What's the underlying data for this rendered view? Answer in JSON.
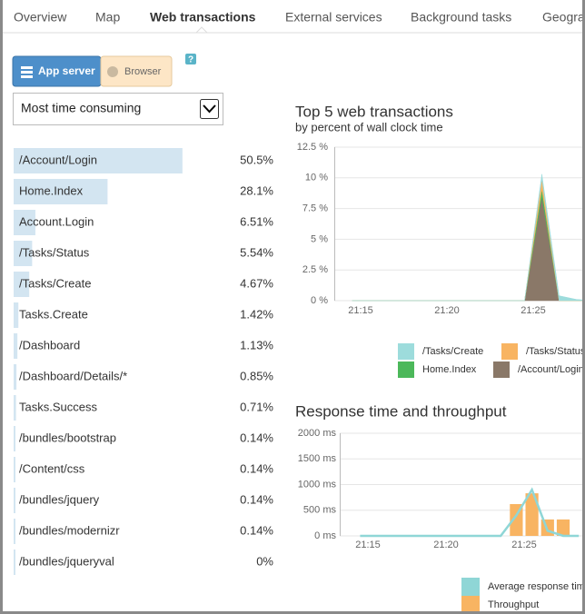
{
  "tabs": [
    "Overview",
    "Map",
    "Web transactions",
    "External services",
    "Background tasks",
    "Geogra"
  ],
  "toggle": {
    "app_server": "App server",
    "browser": "Browser",
    "help": "?"
  },
  "dropdown": "Most time consuming",
  "transactions": {
    "names": [
      "/Account/Login",
      "Home.Index",
      "Account.Login",
      "/Tasks/Status",
      "/Tasks/Create",
      "Tasks.Create",
      "/Dashboard",
      "/Dashboard/Details/*",
      "Tasks.Success",
      "/bundles/bootstrap",
      "/Content/css",
      "/bundles/jquery",
      "/bundles/modernizr",
      "/bundles/jqueryval"
    ],
    "values": [
      50.5,
      28.1,
      6.51,
      5.54,
      4.67,
      1.42,
      1.13,
      0.85,
      0.71,
      0.14,
      0.14,
      0.14,
      0.14,
      0
    ],
    "value_labels": [
      "50.5%",
      "28.1%",
      "6.51%",
      "5.54%",
      "4.67%",
      "1.42%",
      "1.13%",
      "0.85%",
      "0.71%",
      "0.14%",
      "0.14%",
      "0.14%",
      "0.14%",
      "0%"
    ]
  },
  "chart_data": [
    {
      "type": "area",
      "title": "Top 5 web transactions",
      "subtitle": "by percent of wall clock time",
      "categories": [
        null,
        "21:15",
        null,
        null,
        null,
        null,
        "21:20",
        null,
        null,
        null,
        null,
        "21:25",
        null,
        null,
        null
      ],
      "ylim": [
        0,
        12.5
      ],
      "yticks": [
        {
          "value": 0,
          "label": "0 %"
        },
        {
          "value": 2.5,
          "label": "2.5 %"
        },
        {
          "value": 5,
          "label": "5 %"
        },
        {
          "value": 7.5,
          "label": "7.5 %"
        },
        {
          "value": 10,
          "label": "10 %"
        },
        {
          "value": 12.5,
          "label": "12.5 %"
        }
      ],
      "grid": true,
      "stacked": true,
      "series": [
        {
          "name": "/Tasks/Create",
          "color": "#9ddcdc",
          "values": [
            0,
            0,
            0,
            0,
            0,
            0,
            0,
            0,
            0,
            0,
            0,
            0.4,
            0.4,
            0.1,
            0
          ]
        },
        {
          "name": "/Tasks/Status",
          "color": "#f8b462",
          "values": [
            0,
            0,
            0,
            0,
            0,
            0,
            0,
            0,
            0,
            0,
            0,
            0.8,
            0,
            0,
            0
          ]
        },
        {
          "name": "Home.Index",
          "color": "#4cb85a",
          "values": [
            0,
            0,
            0,
            0,
            0,
            0,
            0,
            0,
            0,
            0,
            0,
            0.6,
            0,
            0,
            0
          ]
        },
        {
          "name": "/Account/Login",
          "color": "#8a7868",
          "values": [
            0,
            0,
            0,
            0,
            0,
            0,
            0,
            0,
            0,
            0,
            0,
            8.5,
            0,
            0,
            0
          ]
        }
      ]
    },
    {
      "type": "combo",
      "title": "Response time and throughput",
      "categories": [
        null,
        "21:15",
        null,
        null,
        null,
        null,
        "21:20",
        null,
        null,
        null,
        null,
        "21:25",
        null,
        null,
        null
      ],
      "ylim": [
        0,
        2000
      ],
      "yticks": [
        {
          "value": 0,
          "label": "0 ms"
        },
        {
          "value": 500,
          "label": "500 ms"
        },
        {
          "value": 1000,
          "label": "1000 ms"
        },
        {
          "value": 1500,
          "label": "1500 ms"
        },
        {
          "value": 2000,
          "label": "2000 ms"
        }
      ],
      "grid": true,
      "series": [
        {
          "name": "Average response time",
          "color": "#8fd6d6",
          "kind": "line",
          "values": [
            0,
            0,
            0,
            0,
            0,
            0,
            0,
            0,
            0,
            0,
            400,
            900,
            100,
            0,
            0
          ]
        },
        {
          "name": "Throughput",
          "color": "#f8b462",
          "kind": "bar",
          "values": [
            0,
            0,
            0,
            0,
            0,
            0,
            0,
            0,
            0,
            0,
            620,
            830,
            320,
            320,
            0
          ]
        }
      ]
    }
  ]
}
